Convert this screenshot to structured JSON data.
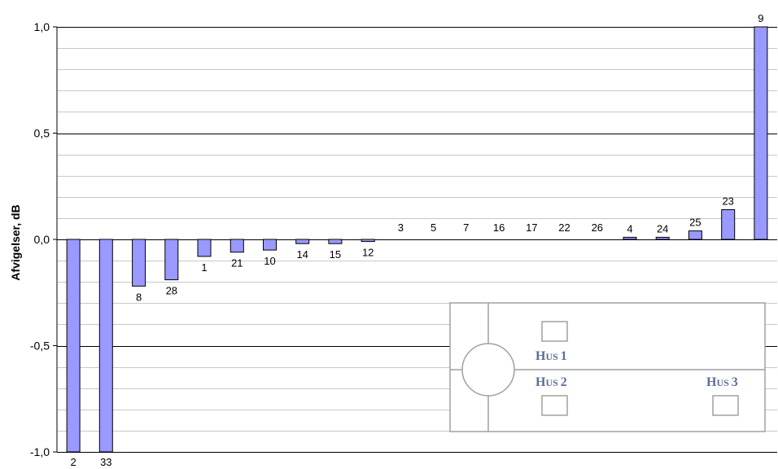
{
  "chart_data": {
    "type": "bar",
    "ylabel": "Afvigelser, dB",
    "ylim": [
      -1.0,
      1.0
    ],
    "yticks": [
      "1,0",
      "0,5",
      "0,0",
      "-0,5",
      "-1,0"
    ],
    "ytick_values": [
      1.0,
      0.5,
      0.0,
      -0.5,
      -1.0
    ],
    "grid": true,
    "bar_color": "#9999ff",
    "categories": [
      "2",
      "33",
      "8",
      "28",
      "1",
      "21",
      "10",
      "14",
      "15",
      "12",
      "3",
      "5",
      "7",
      "16",
      "17",
      "22",
      "26",
      "4",
      "24",
      "25",
      "23",
      "9"
    ],
    "values": [
      -1.0,
      -1.0,
      -0.22,
      -0.19,
      -0.08,
      -0.06,
      -0.05,
      -0.02,
      -0.02,
      -0.01,
      0,
      0,
      0,
      0,
      0,
      0,
      0,
      0.01,
      0.01,
      0.04,
      0.14,
      1.0
    ]
  },
  "legend_map": {
    "labels": [
      "Hus 1",
      "Hus 2",
      "Hus 3"
    ]
  }
}
